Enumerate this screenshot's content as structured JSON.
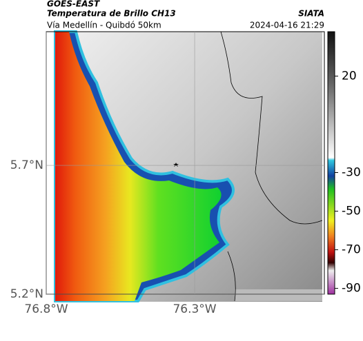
{
  "header": {
    "satellite": "GOES-EAST",
    "title": "Temperatura de Brillo CH13",
    "subtitle": "Vía Medellín - Quibdó 50km",
    "source": "SIATA",
    "datetime": "2024-04-16 21:29"
  },
  "map": {
    "xlim": [
      -76.8,
      -75.863
    ],
    "ylim": [
      5.2,
      6.219
    ],
    "xticks": [
      {
        "value": -76.8,
        "label": "76.8°W"
      },
      {
        "value": -76.3,
        "label": "76.3°W"
      }
    ],
    "yticks": [
      {
        "value": 5.2,
        "label": "5.2°N"
      },
      {
        "value": 5.7,
        "label": "5.7°N"
      }
    ]
  },
  "colorbar": {
    "lim": [
      -93,
      43
    ],
    "ticks": [
      20,
      -30,
      -50,
      -70,
      -90
    ]
  }
}
